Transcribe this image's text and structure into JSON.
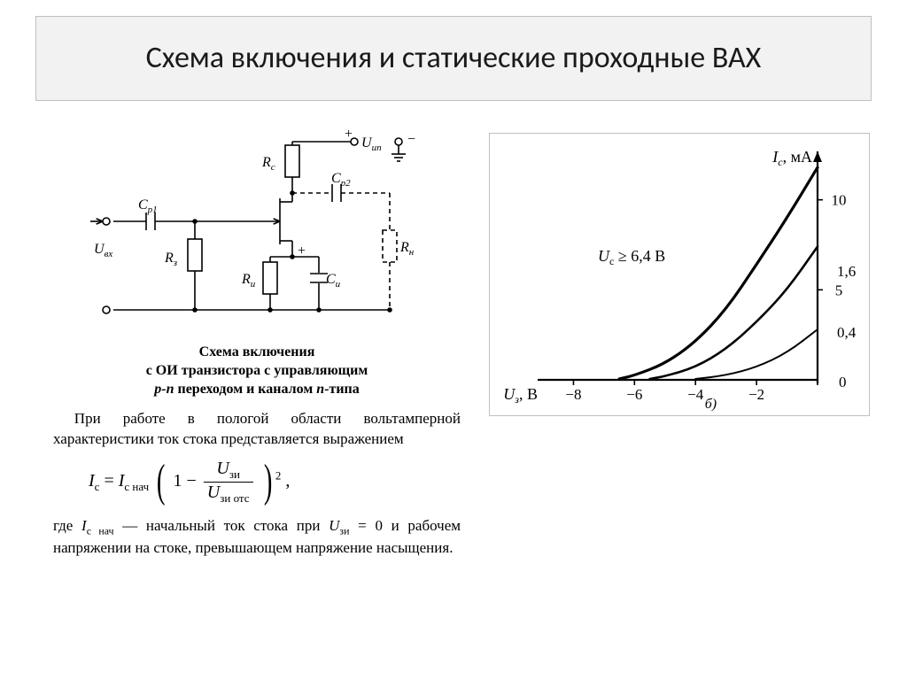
{
  "title": "Схема включения и статические проходные ВАХ",
  "circuit": {
    "stroke": "#000000",
    "stroke_width": 1.6,
    "labels": {
      "Cp1": "C",
      "Cp1_sub": "p1",
      "Cp2": "C",
      "Cp2_sub": "p2",
      "Rc": "R",
      "Rc_sub": "c",
      "Rn": "R",
      "Rn_sub": "н",
      "Ri": "R",
      "Ri_sub": "и",
      "Rz": "R",
      "Rz_sub": "з",
      "Ci": "C",
      "Ci_sub": "и",
      "Uvx": "U",
      "Uvx_sub": "вх",
      "Uip": "U",
      "Uip_sub": "ип",
      "plus": "+",
      "minus": "−"
    },
    "caption_line1": "Схема включения",
    "caption_line2_a": "с ОИ транзистора с управляющим",
    "caption_line2_b_plain1": " переходом и каналом ",
    "caption_line2_b_it1": "p-n",
    "caption_line2_b_it2": "n",
    "caption_line2_b_plain2": "-типа"
  },
  "paragraph": {
    "p1": "При работе в пологой области вольтамперной характеристики ток стока представляется выражением",
    "p2": "где ",
    "p2_sym": "I",
    "p2_sub": "с нач",
    "p2_cont": " — начальный ток стока при ",
    "p2_u": "U",
    "p2_usub": "зи",
    "p2_eq": " = 0 и рабочем напряжении на стоке, превышающем напряжение насыщения."
  },
  "formula": {
    "I": "I",
    "I_sub": "с",
    "eq": " = ",
    "I0": "I",
    "I0_sub": "с нач",
    "one": "1",
    "minus": " − ",
    "num": "U",
    "num_sub": "зи",
    "den": "U",
    "den_sub": "зи отс",
    "pow": "2",
    "tail": " ,"
  },
  "chart": {
    "type": "line",
    "background": "#ffffff",
    "axis_color": "#000000",
    "axis_width": 2.2,
    "xlim": [
      -9,
      0
    ],
    "ylim": [
      0,
      12
    ],
    "xticks": [
      -8,
      -6,
      -4,
      -2,
      0
    ],
    "xlabel": "U",
    "xlabel_sub": "з",
    "xlabel_unit": ", В",
    "ylabel": "I",
    "ylabel_sub": "с",
    "ylabel_unit": ", мА",
    "yticks_right": [
      5,
      10
    ],
    "condition": "U",
    "condition_sub": "c",
    "condition_rest": " ≥ 6,4 В",
    "sublabel": "б)",
    "line_color": "#000000",
    "curves": [
      {
        "label": "0,4",
        "label_x": -0.8,
        "label_y": 2.6,
        "width": 2.0,
        "points": [
          [
            -4.0,
            0.05
          ],
          [
            -3.0,
            0.25
          ],
          [
            -2.0,
            0.7
          ],
          [
            -1.0,
            1.5
          ],
          [
            0.0,
            2.8
          ]
        ]
      },
      {
        "label": "1,6",
        "label_x": -0.9,
        "label_y": 6.0,
        "width": 2.6,
        "points": [
          [
            -5.5,
            0.05
          ],
          [
            -5.0,
            0.2
          ],
          [
            -4.0,
            0.7
          ],
          [
            -3.0,
            1.7
          ],
          [
            -2.0,
            3.2
          ],
          [
            -1.0,
            5.0
          ],
          [
            0.0,
            7.4
          ]
        ]
      },
      {
        "label": "",
        "label_x": 0,
        "label_y": 0,
        "width": 3.2,
        "points": [
          [
            -6.5,
            0.05
          ],
          [
            -6.0,
            0.25
          ],
          [
            -5.0,
            0.9
          ],
          [
            -4.0,
            2.1
          ],
          [
            -3.0,
            3.9
          ],
          [
            -2.0,
            6.4
          ],
          [
            -1.0,
            9.0
          ],
          [
            0.0,
            11.8
          ]
        ]
      }
    ],
    "axis_fontsize": 18,
    "tick_fontsize": 17
  }
}
